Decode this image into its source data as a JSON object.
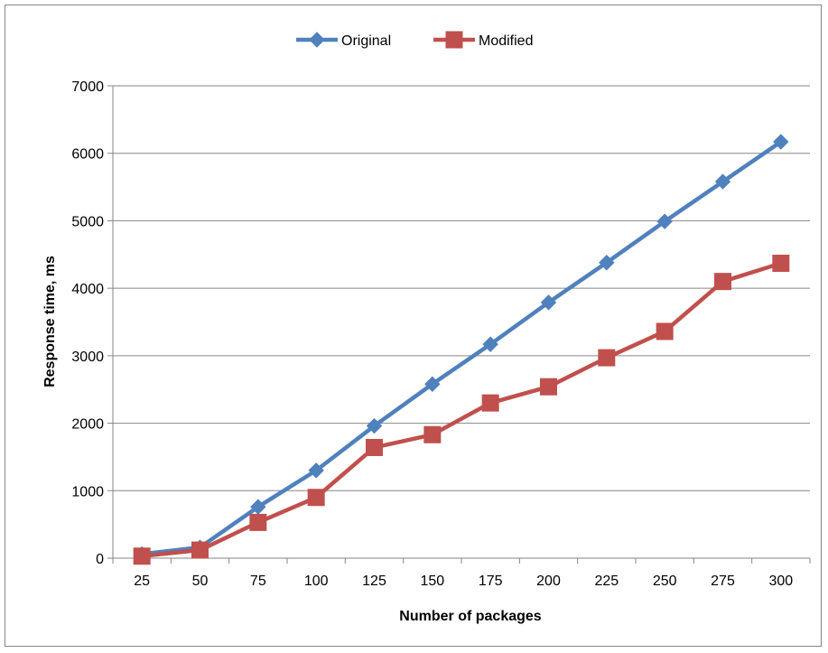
{
  "chart_data": {
    "type": "line",
    "xlabel": "Number of packages",
    "ylabel": "Response time, ms",
    "categories": [
      "25",
      "50",
      "75",
      "100",
      "125",
      "150",
      "175",
      "200",
      "225",
      "250",
      "275",
      "300"
    ],
    "ylim": [
      0,
      7000
    ],
    "yticks": [
      0,
      1000,
      2000,
      3000,
      4000,
      5000,
      6000,
      7000
    ],
    "grid": true,
    "legend": "top-center",
    "series": [
      {
        "name": "Original",
        "color": "#4F81BD",
        "marker": "diamond",
        "values": [
          60,
          160,
          760,
          1300,
          1960,
          2580,
          3170,
          3790,
          4380,
          4990,
          5580,
          6170
        ]
      },
      {
        "name": "Modified",
        "color": "#C0504D",
        "marker": "square",
        "values": [
          30,
          120,
          530,
          900,
          1640,
          1830,
          2300,
          2540,
          2970,
          3360,
          4100,
          4370
        ]
      }
    ]
  }
}
